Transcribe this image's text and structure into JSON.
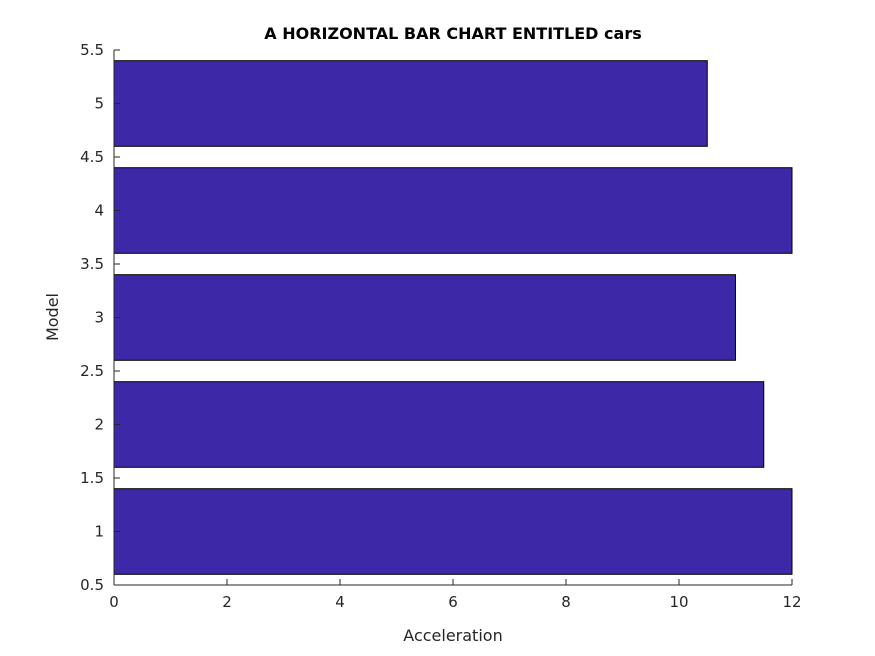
{
  "chart_data": {
    "type": "bar",
    "orientation": "horizontal",
    "title": "A HORIZONTAL BAR CHART ENTITLED cars",
    "xlabel": "Acceleration",
    "ylabel": "Model",
    "categories": [
      "1",
      "2",
      "3",
      "4",
      "5"
    ],
    "y_positions": [
      1,
      2,
      3,
      4,
      5
    ],
    "values": [
      12,
      11.5,
      11,
      12,
      10.5
    ],
    "xlim": [
      0,
      12
    ],
    "ylim": [
      0.5,
      5.5
    ],
    "x_ticks": [
      "0",
      "2",
      "4",
      "6",
      "8",
      "10",
      "12"
    ],
    "y_ticks": [
      "0.5",
      "1",
      "1.5",
      "2",
      "2.5",
      "3",
      "3.5",
      "4",
      "4.5",
      "5",
      "5.5"
    ],
    "grid": false,
    "colors": {
      "bar_fill": "#3D28A8",
      "bar_edge": "#000000",
      "axis": "#262626"
    }
  }
}
